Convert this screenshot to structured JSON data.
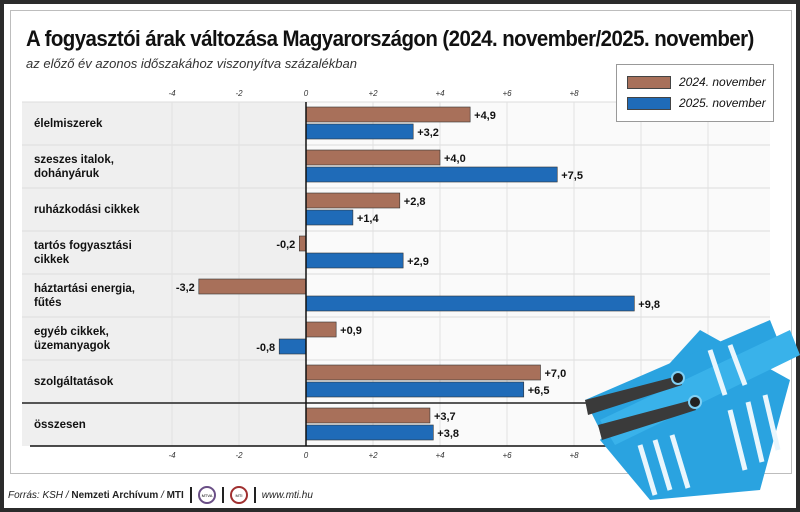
{
  "title": "A fogyasztói árak változása Magyarországon (2024. november/2025. november)",
  "subtitle": "az előző év azonos időszakához viszonyítva százalékban",
  "colors": {
    "series_2024": "#a8705a",
    "series_2025": "#1f6bb8",
    "basket": "#2aa3e0"
  },
  "chart_data": {
    "type": "bar",
    "orientation": "horizontal",
    "categories": [
      "élelmiszerek",
      "szeszes italok,\ndohányáruk",
      "ruházkodási cikkek",
      "tartós fogyasztási\ncikkek",
      "háztartási energia,\nfűtés",
      "egyéb cikkek,\nüzemanyagok",
      "szolgáltatások",
      "összesen"
    ],
    "series": [
      {
        "name": "2024. november",
        "values": [
          4.9,
          4.0,
          2.8,
          -0.2,
          -3.2,
          0.9,
          7.0,
          3.7
        ],
        "labels": [
          "+4,9",
          "+4,0",
          "+2,8",
          "-0,2",
          "-3,2",
          "+0,9",
          "+7,0",
          "+3,7"
        ]
      },
      {
        "name": "2025. november",
        "values": [
          3.2,
          7.5,
          1.4,
          2.9,
          9.8,
          -0.8,
          6.5,
          3.8
        ],
        "labels": [
          "+3,2",
          "+7,5",
          "+1,4",
          "+2,9",
          "+9,8",
          "-0,8",
          "+6,5",
          "+3,8"
        ]
      }
    ],
    "ticks": [
      -4,
      -2,
      0,
      2,
      4,
      6,
      8
    ],
    "tick_labels": [
      "-4",
      "-2",
      "0",
      "+2",
      "+4",
      "+6",
      "+8"
    ],
    "xlim": [
      -8.5,
      13.5
    ],
    "grid": true,
    "legend": "top-right"
  },
  "footer": {
    "source_prefix": "Forrás: KSH / ",
    "archive": "Nemzeti Archívum",
    "slash": " / ",
    "mti": "MTI",
    "url": "www.mti.hu",
    "logo1": "MTVA",
    "logo2": "MTI"
  }
}
